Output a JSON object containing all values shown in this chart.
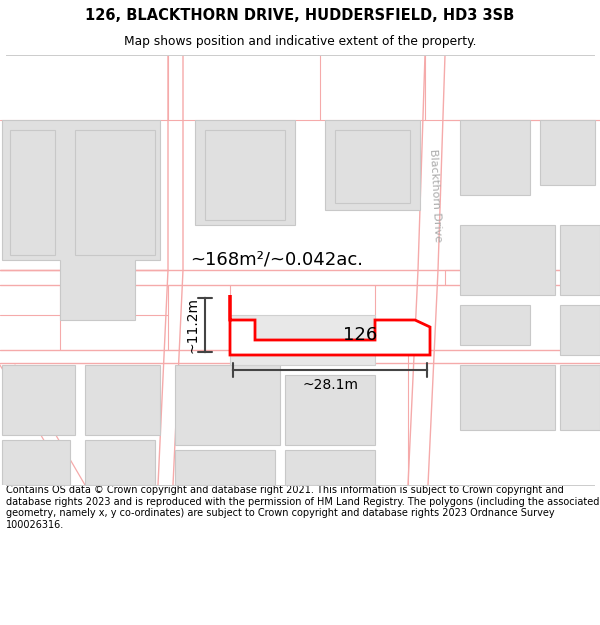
{
  "title_line1": "126, BLACKTHORN DRIVE, HUDDERSFIELD, HD3 3SB",
  "title_line2": "Map shows position and indicative extent of the property.",
  "footer_text": "Contains OS data © Crown copyright and database right 2021. This information is subject to Crown copyright and database rights 2023 and is reproduced with the permission of HM Land Registry. The polygons (including the associated geometry, namely x, y co-ordinates) are subject to Crown copyright and database rights 2023 Ordnance Survey 100026316.",
  "background_color": "#ffffff",
  "map_bg_color": "#f7f7f7",
  "street_label": "Blackthorn Drive",
  "area_label": "~168m²/~0.042ac.",
  "number_label": "126",
  "width_label": "~28.1m",
  "height_label": "~11.2m",
  "property_color": "#ff0000",
  "property_fill": "#ffffff",
  "building_fill": "#e0e0e0",
  "building_edge_color": "#c8c8c8",
  "road_line_color": "#f5aaaa",
  "dim_line_color": "#444444",
  "figsize": [
    6.0,
    6.25
  ],
  "dpi": 100
}
